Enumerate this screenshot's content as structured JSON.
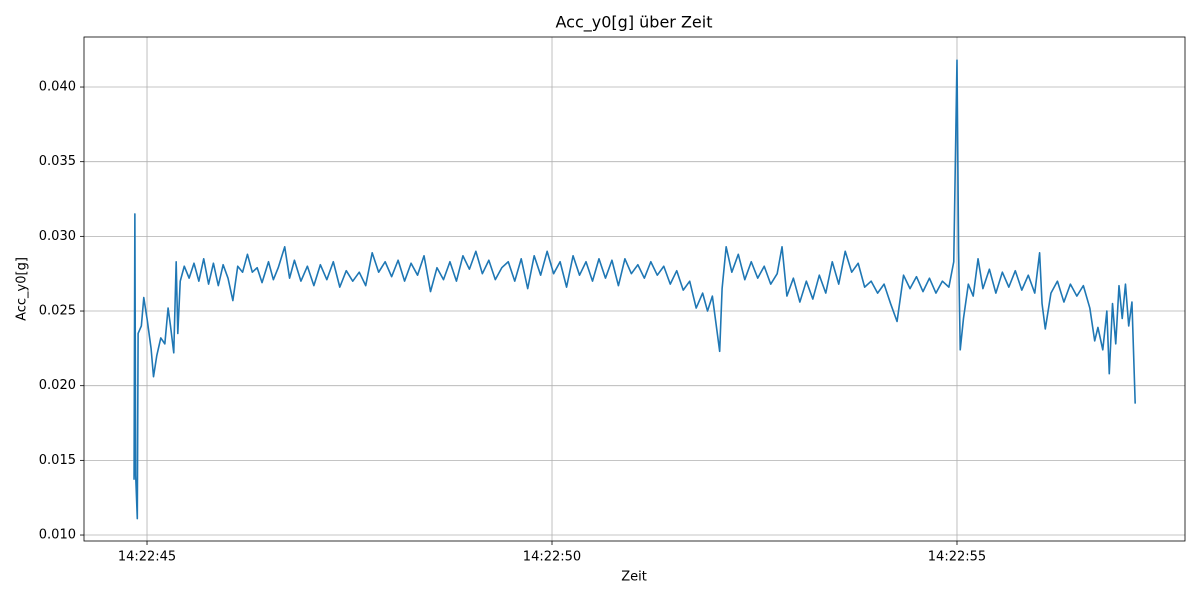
{
  "chart_data": {
    "type": "line",
    "title": "Acc_y0[g] über Zeit",
    "x_label": "Zeit",
    "y_label": "Acc_y0[g]",
    "xlim": [
      44.222,
      57.815
    ],
    "ylim": [
      0.0096,
      0.04335
    ],
    "xticks": [
      {
        "value": 45,
        "label": "14:22:45"
      },
      {
        "value": 50,
        "label": "14:22:50"
      },
      {
        "value": 55,
        "label": "14:22:55"
      }
    ],
    "yticks": [
      {
        "value": 0.01,
        "label": "0.010"
      },
      0.015,
      {
        "value": 0.02,
        "label": "0.020"
      },
      0.025,
      {
        "value": 0.03,
        "label": "0.030"
      },
      0.035,
      {
        "value": 0.04,
        "label": "0.040"
      }
    ],
    "grid": true,
    "x": [
      44.84,
      44.85,
      44.86,
      44.88,
      44.89,
      44.93,
      44.96,
      45.0,
      45.05,
      45.08,
      45.12,
      45.17,
      45.22,
      45.26,
      45.29,
      45.33,
      45.36,
      45.38,
      45.41,
      45.46,
      45.52,
      45.58,
      45.64,
      45.7,
      45.76,
      45.82,
      45.88,
      45.94,
      46.0,
      46.06,
      46.12,
      46.18,
      46.24,
      46.3,
      46.36,
      46.42,
      46.5,
      46.56,
      46.62,
      46.7,
      46.76,
      46.82,
      46.9,
      46.98,
      47.06,
      47.14,
      47.22,
      47.3,
      47.38,
      47.46,
      47.54,
      47.62,
      47.7,
      47.78,
      47.86,
      47.94,
      48.02,
      48.1,
      48.18,
      48.26,
      48.34,
      48.42,
      48.5,
      48.58,
      48.66,
      48.74,
      48.82,
      48.9,
      48.98,
      49.06,
      49.14,
      49.22,
      49.3,
      49.38,
      49.46,
      49.54,
      49.62,
      49.7,
      49.78,
      49.86,
      49.94,
      50.02,
      50.1,
      50.18,
      50.26,
      50.34,
      50.42,
      50.5,
      50.58,
      50.66,
      50.74,
      50.82,
      50.9,
      50.98,
      51.06,
      51.14,
      51.22,
      51.3,
      51.38,
      51.46,
      51.54,
      51.62,
      51.7,
      51.78,
      51.86,
      51.92,
      51.98,
      52.07,
      52.1,
      52.15,
      52.22,
      52.3,
      52.38,
      52.46,
      52.54,
      52.62,
      52.7,
      52.78,
      52.84,
      52.9,
      52.98,
      53.06,
      53.14,
      53.22,
      53.3,
      53.38,
      53.46,
      53.54,
      53.62,
      53.7,
      53.78,
      53.86,
      53.94,
      54.02,
      54.1,
      54.18,
      54.26,
      54.34,
      54.42,
      54.5,
      54.58,
      54.66,
      54.74,
      54.82,
      54.9,
      54.96,
      55.0,
      55.02,
      55.04,
      55.08,
      55.14,
      55.2,
      55.26,
      55.32,
      55.4,
      55.48,
      55.56,
      55.64,
      55.72,
      55.8,
      55.88,
      55.96,
      56.02,
      56.05,
      56.09,
      56.16,
      56.24,
      56.32,
      56.4,
      56.48,
      56.56,
      56.64,
      56.7,
      56.74,
      56.8,
      56.85,
      56.88,
      56.92,
      56.96,
      57.0,
      57.04,
      57.08,
      57.12,
      57.16,
      57.2
    ],
    "series": [
      {
        "name": "Acc_y0[g]",
        "color": "#1f77b4",
        "values": [
          0.0137,
          0.0315,
          0.014,
          0.0111,
          0.0235,
          0.024,
          0.0259,
          0.0245,
          0.0225,
          0.0206,
          0.022,
          0.0232,
          0.0228,
          0.0252,
          0.024,
          0.0222,
          0.0283,
          0.0235,
          0.027,
          0.028,
          0.0272,
          0.0282,
          0.027,
          0.0285,
          0.0268,
          0.0282,
          0.0267,
          0.0281,
          0.0272,
          0.0257,
          0.028,
          0.0276,
          0.0288,
          0.0276,
          0.0279,
          0.0269,
          0.0283,
          0.0271,
          0.0279,
          0.0293,
          0.0272,
          0.0284,
          0.027,
          0.028,
          0.0267,
          0.0281,
          0.0271,
          0.0283,
          0.0266,
          0.0277,
          0.027,
          0.0276,
          0.0267,
          0.0289,
          0.0276,
          0.0283,
          0.0273,
          0.0284,
          0.027,
          0.0282,
          0.0274,
          0.0287,
          0.0263,
          0.0279,
          0.0271,
          0.0283,
          0.027,
          0.0287,
          0.0278,
          0.029,
          0.0275,
          0.0284,
          0.0271,
          0.0279,
          0.0283,
          0.027,
          0.0285,
          0.0265,
          0.0287,
          0.0274,
          0.029,
          0.0275,
          0.0283,
          0.0266,
          0.0287,
          0.0274,
          0.0283,
          0.027,
          0.0285,
          0.0272,
          0.0284,
          0.0267,
          0.0285,
          0.0275,
          0.0281,
          0.0272,
          0.0283,
          0.0274,
          0.028,
          0.0268,
          0.0277,
          0.0264,
          0.027,
          0.0252,
          0.0262,
          0.025,
          0.026,
          0.0223,
          0.0265,
          0.0293,
          0.0276,
          0.0288,
          0.0271,
          0.0283,
          0.0272,
          0.028,
          0.0268,
          0.0275,
          0.0293,
          0.026,
          0.0272,
          0.0256,
          0.027,
          0.0258,
          0.0274,
          0.0262,
          0.0283,
          0.0268,
          0.029,
          0.0276,
          0.0282,
          0.0266,
          0.027,
          0.0262,
          0.0268,
          0.0255,
          0.0243,
          0.0274,
          0.0265,
          0.0273,
          0.0263,
          0.0272,
          0.0262,
          0.027,
          0.0266,
          0.0283,
          0.0418,
          0.029,
          0.0224,
          0.0245,
          0.0268,
          0.026,
          0.0285,
          0.0265,
          0.0278,
          0.0262,
          0.0276,
          0.0266,
          0.0277,
          0.0264,
          0.0274,
          0.0262,
          0.0289,
          0.0255,
          0.0238,
          0.0262,
          0.027,
          0.0256,
          0.0268,
          0.026,
          0.0267,
          0.0252,
          0.023,
          0.0239,
          0.0224,
          0.025,
          0.0208,
          0.0255,
          0.0228,
          0.0267,
          0.0245,
          0.0268,
          0.024,
          0.0256,
          0.0188
        ]
      }
    ]
  }
}
